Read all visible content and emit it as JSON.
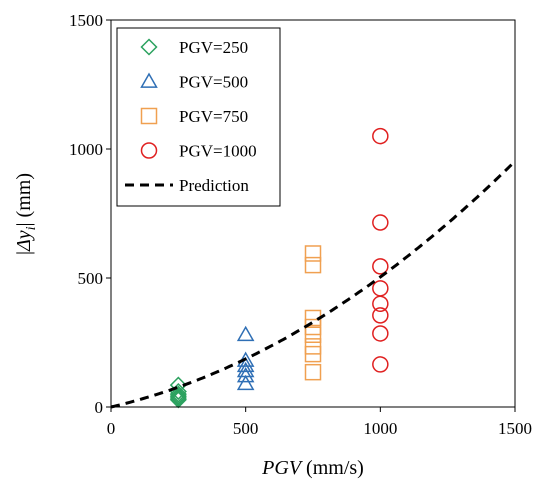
{
  "chart_data": {
    "type": "scatter",
    "xlabel_italic": "PGV",
    "xlabel_rest": " (mm/s)",
    "ylabel_prefix": "|",
    "ylabel_italic": "Δy",
    "ylabel_sub": "i",
    "ylabel_suffix": "| (mm)",
    "xlim": [
      0,
      1500
    ],
    "ylim": [
      0,
      1500
    ],
    "xticks": [
      "0",
      "500",
      "1000",
      "1500"
    ],
    "yticks": [
      "0",
      "500",
      "1000",
      "1500"
    ],
    "grid": false,
    "legend_position": "top-left",
    "series": [
      {
        "name": "PGV=250",
        "marker": "diamond",
        "color": "#2ca25f",
        "points": [
          {
            "x": 250,
            "y": 85
          },
          {
            "x": 250,
            "y": 60
          },
          {
            "x": 250,
            "y": 50
          },
          {
            "x": 250,
            "y": 42
          },
          {
            "x": 250,
            "y": 35
          },
          {
            "x": 250,
            "y": 28
          }
        ]
      },
      {
        "name": "PGV=500",
        "marker": "triangle",
        "color": "#2f6fb5",
        "points": [
          {
            "x": 500,
            "y": 280
          },
          {
            "x": 500,
            "y": 180
          },
          {
            "x": 500,
            "y": 160
          },
          {
            "x": 500,
            "y": 140
          },
          {
            "x": 500,
            "y": 120
          },
          {
            "x": 500,
            "y": 90
          }
        ]
      },
      {
        "name": "PGV=750",
        "marker": "square",
        "color": "#f0a050",
        "points": [
          {
            "x": 750,
            "y": 595
          },
          {
            "x": 750,
            "y": 550
          },
          {
            "x": 750,
            "y": 345
          },
          {
            "x": 750,
            "y": 310
          },
          {
            "x": 750,
            "y": 280
          },
          {
            "x": 750,
            "y": 235
          },
          {
            "x": 750,
            "y": 205
          },
          {
            "x": 750,
            "y": 135
          }
        ]
      },
      {
        "name": "PGV=1000",
        "marker": "circle",
        "color": "#e02020",
        "points": [
          {
            "x": 1000,
            "y": 1050
          },
          {
            "x": 1000,
            "y": 715
          },
          {
            "x": 1000,
            "y": 545
          },
          {
            "x": 1000,
            "y": 460
          },
          {
            "x": 1000,
            "y": 400
          },
          {
            "x": 1000,
            "y": 355
          },
          {
            "x": 1000,
            "y": 285
          },
          {
            "x": 1000,
            "y": 165
          }
        ]
      },
      {
        "name": "Prediction",
        "type": "line",
        "style": "dashed",
        "color": "#000000",
        "formula": "y = 0.000262 * x^2 + 0.242 * x",
        "coeff_a": 0.000262,
        "coeff_b": 0.242
      }
    ]
  }
}
